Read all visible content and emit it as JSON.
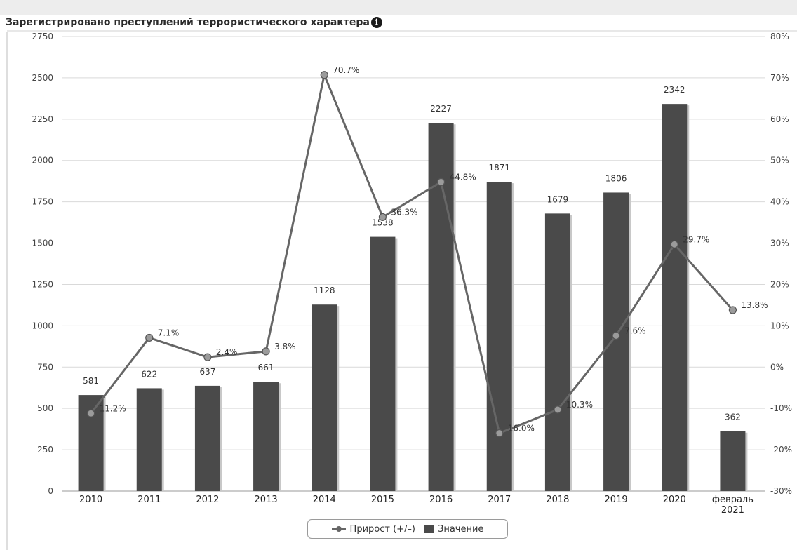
{
  "chart_title": "Зарегистрировано преступлений террористического характера",
  "info_icon": "info-icon",
  "legend": {
    "line_label": "Прирост (+/–)",
    "bar_label": "Значение"
  },
  "chart_data": {
    "type": "bar",
    "title": "Зарегистрировано преступлений террористического характера",
    "categories": [
      "2010",
      "2011",
      "2012",
      "2013",
      "2014",
      "2015",
      "2016",
      "2017",
      "2018",
      "2019",
      "2020",
      "февраль\n2021"
    ],
    "series": [
      {
        "name": "Значение",
        "type": "bar",
        "axis": "left",
        "values": [
          581,
          622,
          637,
          661,
          1128,
          1538,
          2227,
          1871,
          1679,
          1806,
          2342,
          362
        ],
        "labels": [
          "581",
          "622",
          "637",
          "661",
          "1128",
          "1538",
          "2227",
          "1871",
          "1679",
          "1806",
          "2342",
          "362"
        ]
      },
      {
        "name": "Прирост (+/–)",
        "type": "line",
        "axis": "right",
        "values": [
          -11.2,
          7.1,
          2.4,
          3.8,
          70.7,
          36.3,
          44.8,
          -16.0,
          -10.3,
          7.6,
          29.7,
          13.8
        ],
        "labels": [
          "11.2%",
          "7.1%",
          "2.4%",
          "3.8%",
          "70.7%",
          "36.3%",
          "44.8%",
          "16.0%",
          "10.3%",
          "7.6%",
          "29.7%",
          "13.8%"
        ]
      }
    ],
    "y_left": {
      "range": [
        0,
        2750
      ],
      "ticks": [
        0,
        250,
        500,
        750,
        1000,
        1250,
        1500,
        1750,
        2000,
        2250,
        2500,
        2750
      ],
      "tick_labels": [
        "0",
        "250",
        "500",
        "750",
        "1000",
        "1250",
        "1500",
        "1750",
        "2000",
        "2250",
        "2500",
        "2750"
      ]
    },
    "y_right": {
      "range": [
        -30,
        80
      ],
      "ticks": [
        -30,
        -20,
        -10,
        0,
        10,
        20,
        30,
        40,
        50,
        60,
        70,
        80
      ],
      "tick_labels": [
        "-30%",
        "-20%",
        "-10%",
        "0%",
        "10%",
        "20%",
        "30%",
        "40%",
        "50%",
        "60%",
        "70%",
        "80%"
      ]
    },
    "grid": true,
    "legend_position": "bottom-center",
    "colors": {
      "bar": "#4a4a4a",
      "bar_shadow": "#c8c8c8",
      "line": "#666666",
      "marker_fill": "#9b9b9b",
      "grid": "#d9d9d9"
    }
  }
}
